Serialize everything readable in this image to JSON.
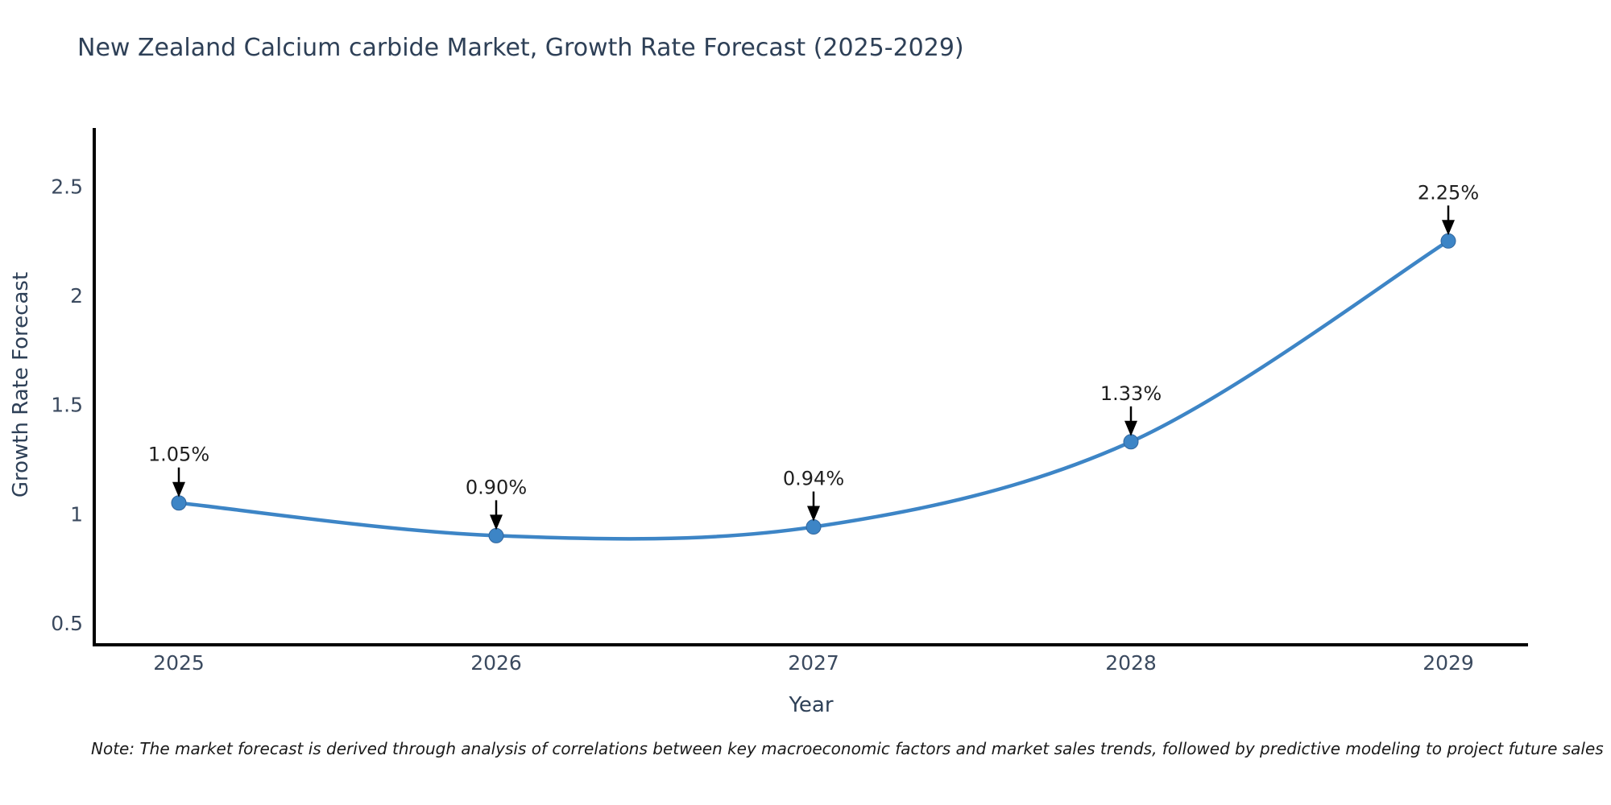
{
  "page": {
    "note": "Note: The market forecast is derived through analysis of correlations between key macroeconomic factors and market sales trends, followed by predictive modeling to project future sales"
  },
  "chart_data": {
    "type": "line",
    "title": "New Zealand Calcium carbide Market, Growth Rate Forecast (2025-2029)",
    "xlabel": "Year",
    "ylabel": "Growth Rate Forecast",
    "categories": [
      "2025",
      "2026",
      "2027",
      "2028",
      "2029"
    ],
    "values": [
      1.05,
      0.9,
      0.94,
      1.33,
      2.25
    ],
    "point_labels": [
      "1.05%",
      "0.90%",
      "0.94%",
      "1.33%",
      "2.25%"
    ],
    "yticks": [
      "0.5",
      "1",
      "1.5",
      "2",
      "2.5"
    ],
    "ytick_values": [
      0.5,
      1,
      1.5,
      2,
      2.5
    ],
    "ylim": [
      0.4,
      2.76
    ],
    "grid": false,
    "legend_position": "none",
    "colors": {
      "line": "#3d85c6",
      "marker": "#3d85c6",
      "marker_edge": "#31659c",
      "axis": "#000000",
      "tick_text": "#3b4a5f",
      "annotation_text": "#1f1f1f",
      "annotation_arrow": "#000000",
      "title_text": "#2e4057"
    }
  }
}
